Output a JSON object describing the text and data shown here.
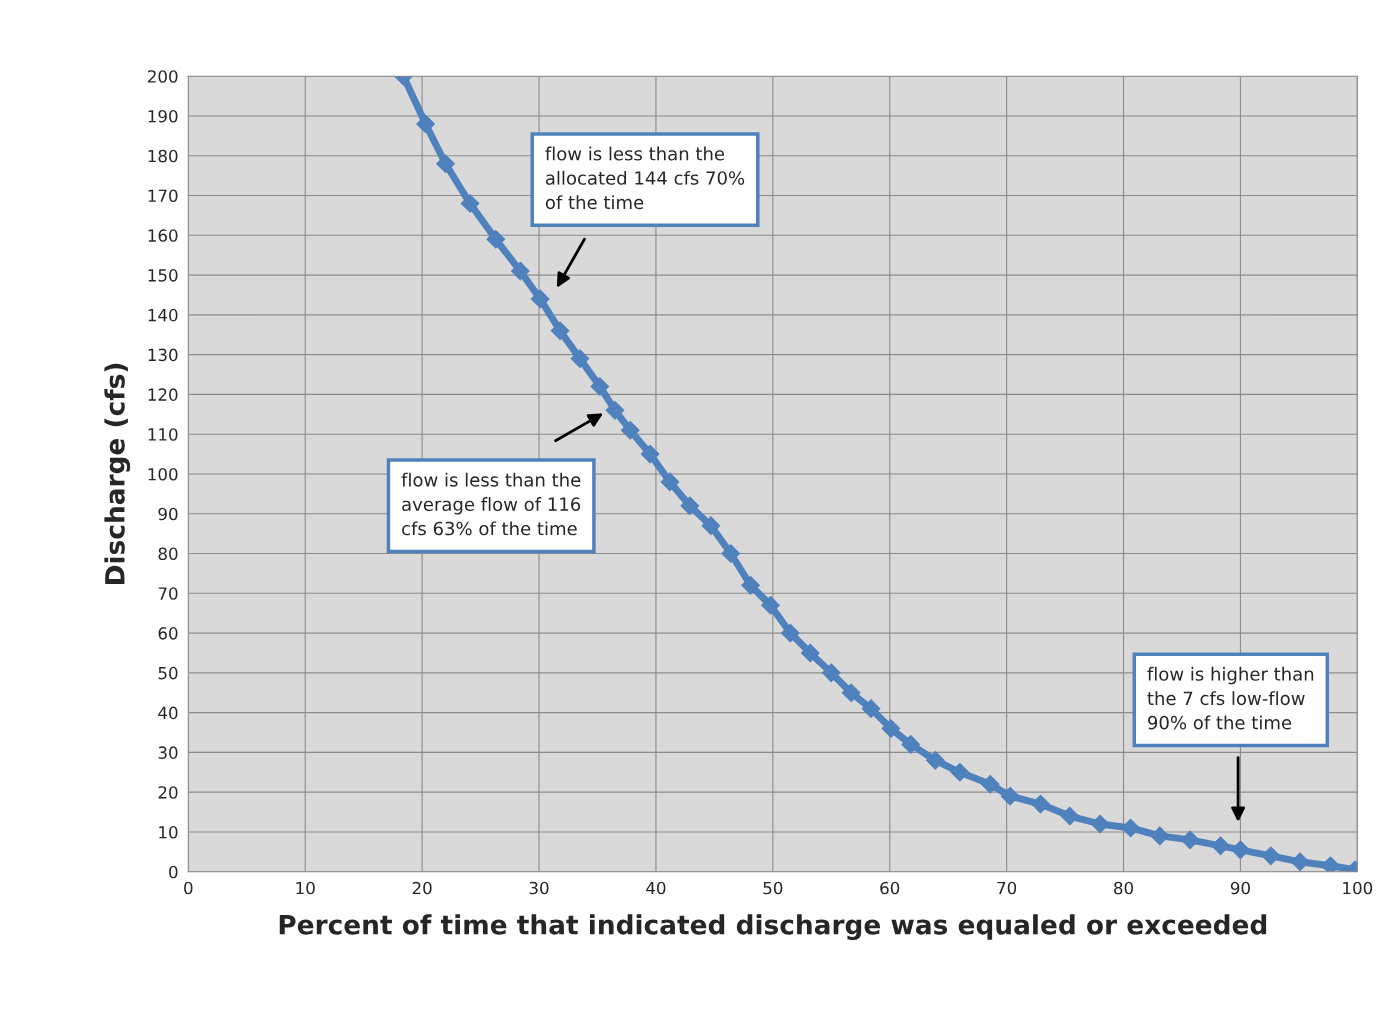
{
  "chart_data": {
    "type": "line",
    "xlabel": "Percent of time that indicated discharge was equaled or exceeded",
    "ylabel": "Discharge (cfs)",
    "series": [
      {
        "color": "#4f81bd",
        "x": [
          18.4,
          20.3,
          22.0,
          24.1,
          26.3,
          28.4,
          30.1,
          31.8,
          33.5,
          35.2,
          36.5,
          37.8,
          39.5,
          41.2,
          42.9,
          44.7,
          46.4,
          48.1,
          49.8,
          51.5,
          53.2,
          55.0,
          56.7,
          58.4,
          60.1,
          61.8,
          63.9,
          66.0,
          68.6,
          70.3,
          72.9,
          75.4,
          78.0,
          80.6,
          83.1,
          85.7,
          88.3,
          90.0,
          92.6,
          95.1,
          97.7,
          99.8
        ],
        "values": [
          200,
          188,
          178,
          168,
          159,
          151,
          144,
          136,
          129,
          122,
          116,
          111,
          105,
          98,
          92,
          87,
          80,
          72,
          67,
          60,
          55,
          50,
          45,
          41,
          36,
          32,
          28,
          25,
          22,
          19,
          17,
          14,
          12,
          11,
          9,
          8,
          6.5,
          5.5,
          4,
          2.5,
          1.5,
          0.5
        ]
      }
    ],
    "marker": "diamond",
    "line_style": "solid",
    "xlim": [
      0,
      100
    ],
    "xticks": [
      0,
      10,
      20,
      30,
      40,
      50,
      60,
      70,
      80,
      90,
      100
    ],
    "ylim": [
      0,
      200
    ],
    "yticks": [
      0,
      10,
      20,
      30,
      40,
      50,
      60,
      70,
      80,
      90,
      100,
      110,
      120,
      130,
      140,
      150,
      160,
      170,
      180,
      190,
      200
    ],
    "grid": true,
    "annotations": [
      "flow is less than the\nallocated 144 cfs 70%\nof the time",
      "flow is less than the\naverage flow of 116\ncfs 63% of the time",
      "flow is higher than\nthe 7 cfs low-flow\n90% of the time"
    ]
  }
}
